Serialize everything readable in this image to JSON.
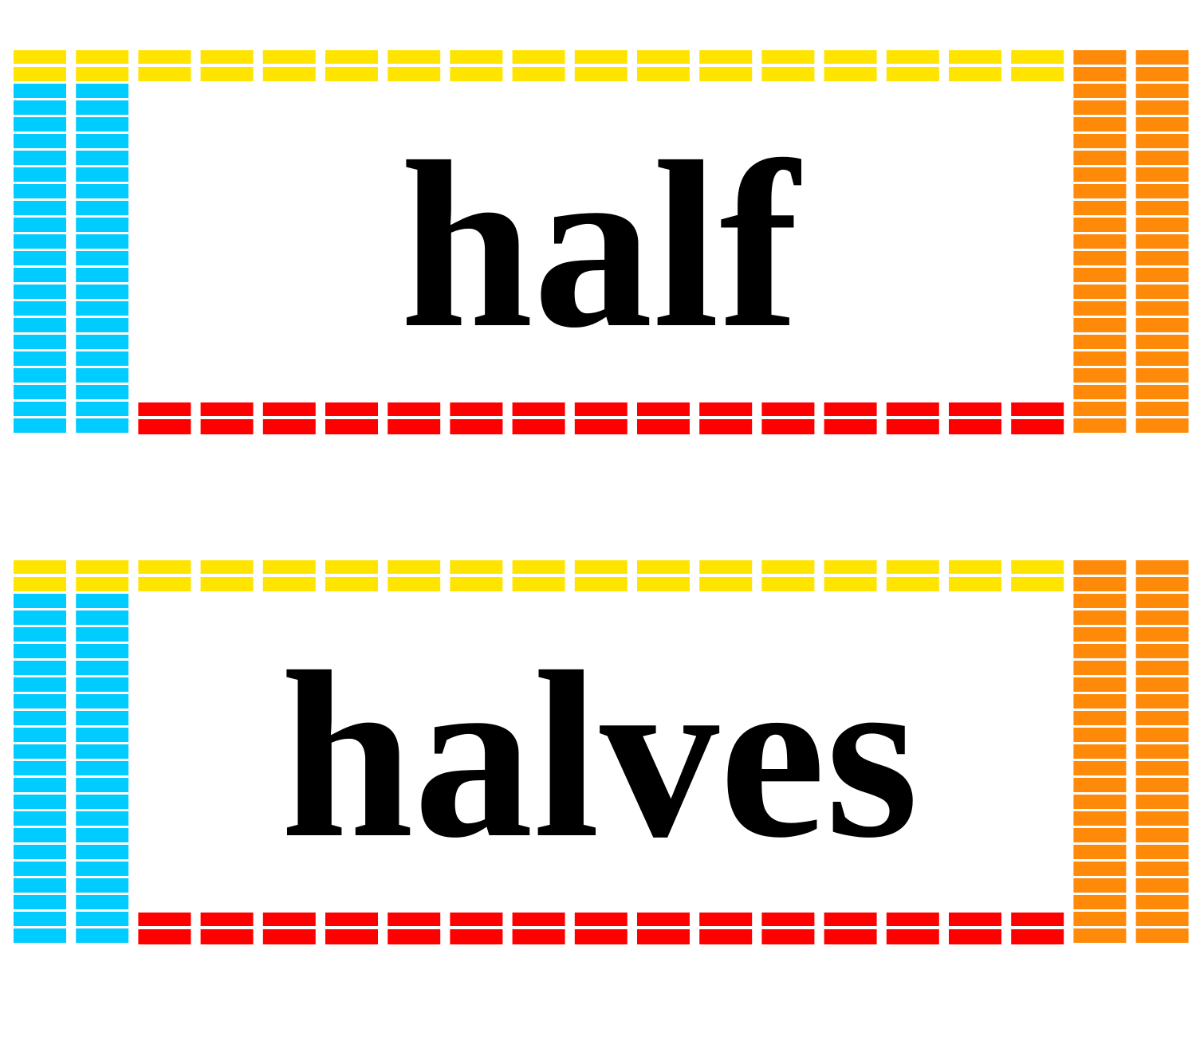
{
  "cards": [
    {
      "word": "half"
    },
    {
      "word": "halves"
    }
  ]
}
